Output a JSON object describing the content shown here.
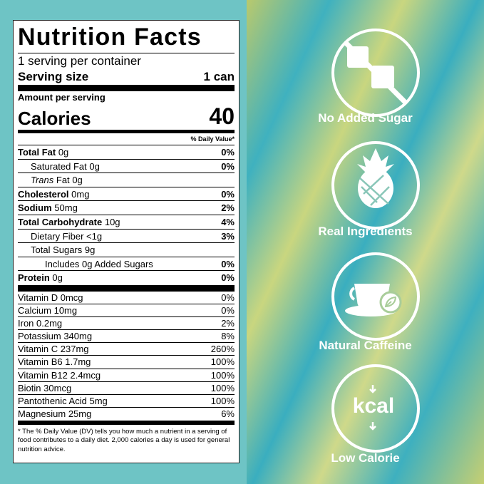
{
  "nutrition_label": {
    "title": "Nutrition Facts",
    "servings_per_container": "1 serving per container",
    "serving_size": {
      "label": "Serving size",
      "value": "1 can"
    },
    "amount_per_serving": "Amount per serving",
    "calories": {
      "label": "Calories",
      "value": "40"
    },
    "daily_value_header": "% Daily Value*",
    "nutrients": [
      {
        "name": "Total Fat",
        "amount": "0g",
        "dv": "0%"
      },
      {
        "name": "Saturated Fat",
        "amount": "0g",
        "dv": "0%"
      },
      {
        "prefix": "Trans",
        "name": "Fat",
        "amount": "0g"
      },
      {
        "name": "Cholesterol",
        "amount": "0mg",
        "dv": "0%"
      },
      {
        "name": "Sodium",
        "amount": "50mg",
        "dv": "2%"
      },
      {
        "name": "Total Carbohydrate",
        "amount": "10g",
        "dv": "4%"
      },
      {
        "name": "Dietary Fiber",
        "amount": "<1g",
        "dv": "3%"
      },
      {
        "name": "Total Sugars",
        "amount": "9g"
      },
      {
        "text": "Includes 0g Added Sugars",
        "dv": "0%"
      },
      {
        "name": "Protein",
        "amount": "0g",
        "dv": "0%"
      }
    ],
    "vitamins_minerals": [
      {
        "name": "Vitamin D",
        "amount": "0mcg",
        "dv": "0%"
      },
      {
        "name": "Calcium",
        "amount": "10mg",
        "dv": "0%"
      },
      {
        "name": "Iron",
        "amount": "0.2mg",
        "dv": "2%"
      },
      {
        "name": "Potassium",
        "amount": "340mg",
        "dv": "8%"
      },
      {
        "name": "Vitamin C",
        "amount": "237mg",
        "dv": "260%"
      },
      {
        "name": "Vitamin B6",
        "amount": "1.7mg",
        "dv": "100%"
      },
      {
        "name": "Vitamin B12",
        "amount": "2.4mcg",
        "dv": "100%"
      },
      {
        "name": "Biotin",
        "amount": "30mcg",
        "dv": "100%"
      },
      {
        "name": "Pantothenic Acid",
        "amount": "5mg",
        "dv": "100%"
      },
      {
        "name": "Magnesium",
        "amount": "25mg",
        "dv": "6%"
      }
    ],
    "footnote": "* The % Daily Value (DV) tells you how much a nutrient in a serving of food contributes to a daily diet. 2,000 calories a day is used for general nutrition advice."
  },
  "badges": [
    {
      "label": "No Added Sugar"
    },
    {
      "label": "Real Ingredients"
    },
    {
      "label": "Natural Caffeine"
    },
    {
      "label": "Low Calorie",
      "icon_text": "kcal"
    }
  ]
}
